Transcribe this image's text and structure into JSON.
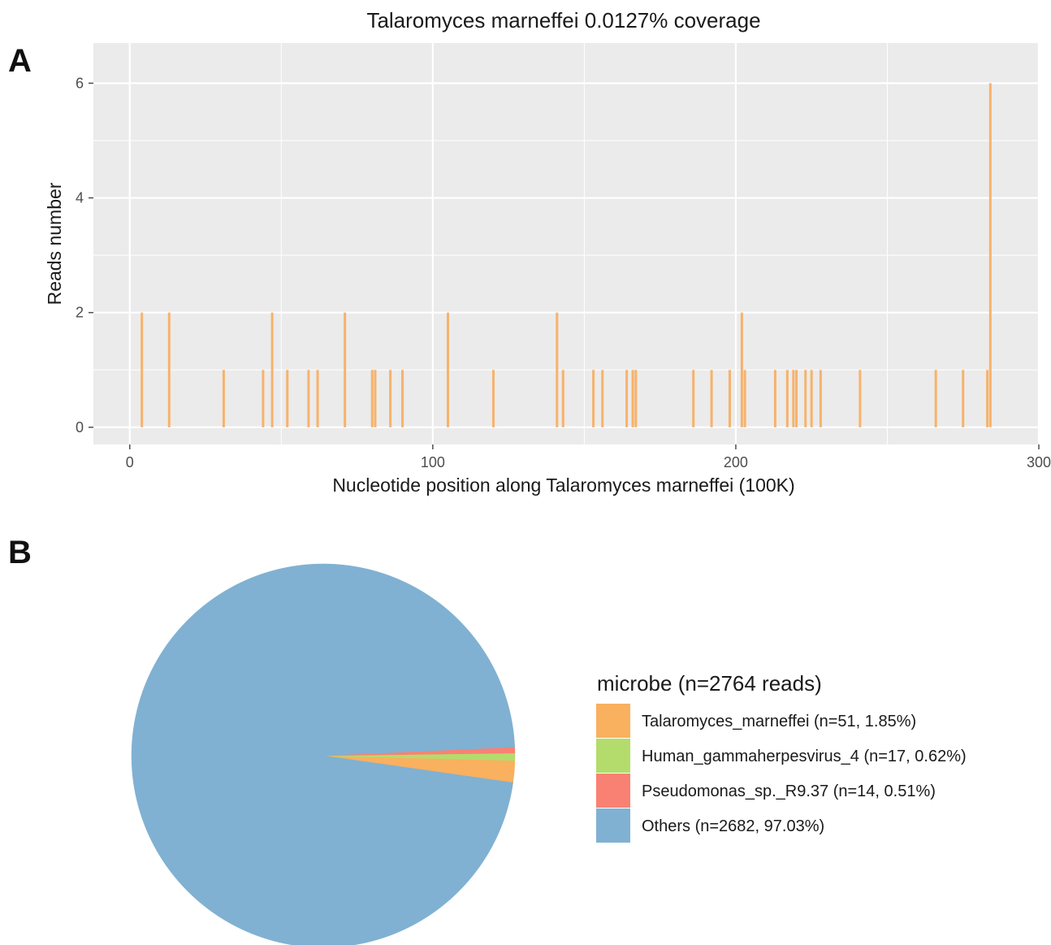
{
  "panels": {
    "a": {
      "letter": "A"
    },
    "b": {
      "letter": "B"
    }
  },
  "colors": {
    "panel_bg": "#ebebeb",
    "grid": "#ffffff",
    "bar": "#f7b26b",
    "tick": "#4d4d4d"
  },
  "chart_data": [
    {
      "type": "bar",
      "title": "Talaromyces marneffei  0.0127% coverage",
      "xlabel": "Nucleotide position along Talaromyces marneffei  (100K)",
      "ylabel": "Reads number",
      "xlim": [
        -12,
        300
      ],
      "ylim": [
        -0.3,
        6.7
      ],
      "xticks": [
        0,
        100,
        200,
        300
      ],
      "yticks": [
        0,
        2,
        4,
        6
      ],
      "grid": true,
      "x": [
        4,
        13,
        31,
        44,
        47,
        52,
        59,
        62,
        71,
        80,
        81,
        86,
        90,
        105,
        120,
        141,
        143,
        153,
        156,
        164,
        166,
        167,
        186,
        192,
        198,
        202,
        203,
        213,
        217,
        219,
        220,
        223,
        225,
        228,
        241,
        266,
        275,
        283,
        284
      ],
      "values": [
        2,
        2,
        1,
        1,
        2,
        1,
        1,
        1,
        2,
        1,
        1,
        1,
        1,
        2,
        1,
        2,
        1,
        1,
        1,
        1,
        1,
        1,
        1,
        1,
        1,
        2,
        1,
        1,
        1,
        1,
        1,
        1,
        1,
        1,
        1,
        1,
        1,
        1,
        6
      ],
      "bar_color": "#f7b26b"
    },
    {
      "type": "pie",
      "legend_title": "microbe (n=2764 reads)",
      "legend_position": "right",
      "slices": [
        {
          "label": "Talaromyces_marneffei (n=51, 1.85%)",
          "value": 51,
          "percent": 1.85,
          "color": "#f9b05f"
        },
        {
          "label": "Human_gammaherpesvirus_4 (n=17, 0.62%)",
          "value": 17,
          "percent": 0.62,
          "color": "#b3dc6c"
        },
        {
          "label": "Pseudomonas_sp._R9.37 (n=14, 0.51%)",
          "value": 14,
          "percent": 0.51,
          "color": "#f98173"
        },
        {
          "label": "Others (n=2682, 97.03%)",
          "value": 2682,
          "percent": 97.03,
          "color": "#80b1d2"
        }
      ]
    }
  ]
}
